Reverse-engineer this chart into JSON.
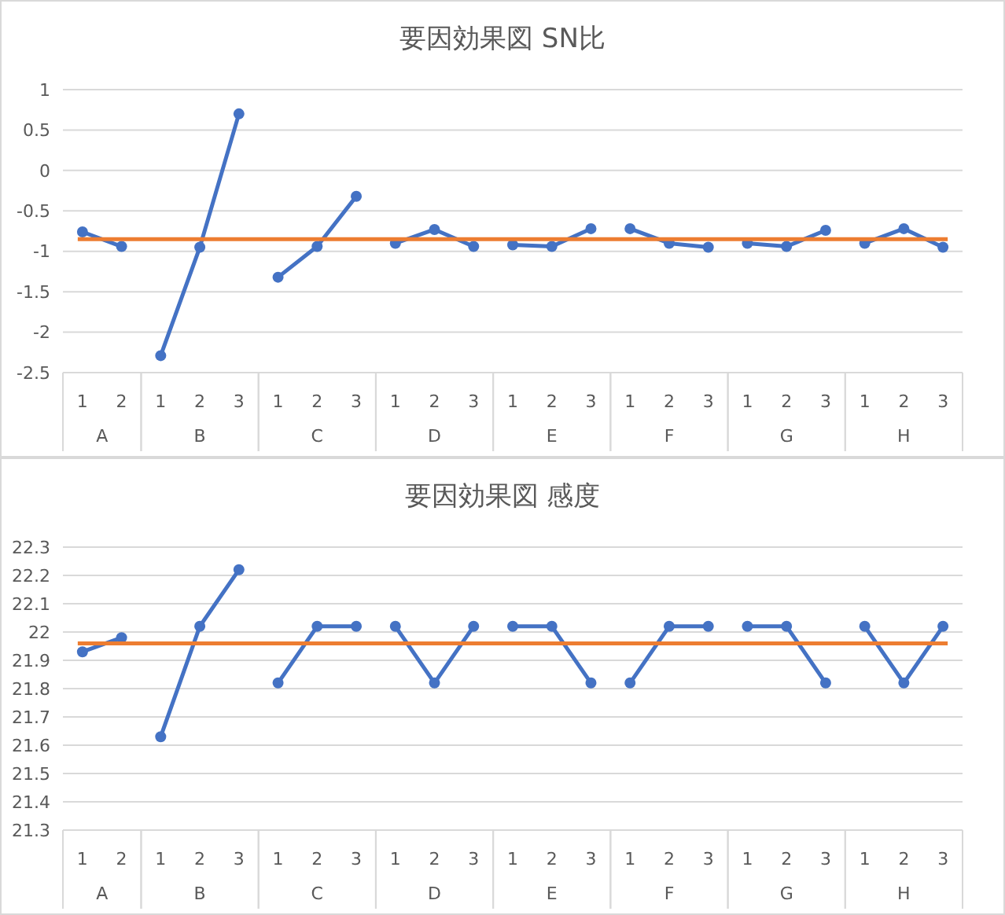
{
  "chart_data": [
    {
      "type": "line",
      "title": "要因効果図 SN比",
      "categories": [
        "1",
        "2",
        "1",
        "2",
        "3",
        "1",
        "2",
        "3",
        "1",
        "2",
        "3",
        "1",
        "2",
        "3",
        "1",
        "2",
        "3",
        "1",
        "2",
        "3",
        "1",
        "2",
        "3"
      ],
      "series": [
        {
          "color": "#4472c4",
          "values": [
            -0.76,
            -0.94,
            null,
            null,
            null,
            null,
            null,
            null,
            null,
            null,
            null,
            null,
            null,
            null,
            null,
            null,
            null,
            null,
            null,
            null,
            null,
            null,
            null
          ]
        },
        {
          "color": "#4472c4",
          "values": [
            null,
            null,
            -2.29,
            -0.95,
            0.7,
            null,
            null,
            null,
            null,
            null,
            null,
            null,
            null,
            null,
            null,
            null,
            null,
            null,
            null,
            null,
            null,
            null,
            null
          ]
        },
        {
          "color": "#4472c4",
          "values": [
            null,
            null,
            null,
            null,
            null,
            -1.32,
            -0.94,
            -0.32,
            null,
            null,
            null,
            null,
            null,
            null,
            null,
            null,
            null,
            null,
            null,
            null,
            null,
            null,
            null
          ]
        },
        {
          "color": "#4472c4",
          "values": [
            null,
            null,
            null,
            null,
            null,
            null,
            null,
            null,
            -0.9,
            -0.73,
            -0.94,
            null,
            null,
            null,
            null,
            null,
            null,
            null,
            null,
            null,
            null,
            null,
            null
          ]
        },
        {
          "color": "#4472c4",
          "values": [
            null,
            null,
            null,
            null,
            null,
            null,
            null,
            null,
            null,
            null,
            null,
            -0.92,
            -0.94,
            -0.72,
            null,
            null,
            null,
            null,
            null,
            null,
            null,
            null,
            null
          ]
        },
        {
          "color": "#4472c4",
          "values": [
            null,
            null,
            null,
            null,
            null,
            null,
            null,
            null,
            null,
            null,
            null,
            null,
            null,
            null,
            -0.72,
            -0.9,
            -0.95,
            null,
            null,
            null,
            null,
            null,
            null
          ]
        },
        {
          "color": "#4472c4",
          "values": [
            null,
            null,
            null,
            null,
            null,
            null,
            null,
            null,
            null,
            null,
            null,
            null,
            null,
            null,
            null,
            null,
            null,
            -0.9,
            -0.94,
            -0.74,
            null,
            null,
            null
          ]
        },
        {
          "color": "#4472c4",
          "values": [
            null,
            null,
            null,
            null,
            null,
            null,
            null,
            null,
            null,
            null,
            null,
            null,
            null,
            null,
            null,
            null,
            null,
            null,
            null,
            null,
            -0.9,
            -0.72,
            -0.95
          ]
        }
      ],
      "annotations": [
        "A",
        "B",
        "C",
        "D",
        "E",
        "F",
        "G",
        "H"
      ],
      "ref_lines": [
        {
          "axis": "y",
          "value": -0.85,
          "color": "#ed7d31"
        }
      ],
      "ylim": [
        -2.5,
        1
      ],
      "yticks": [
        -2.5,
        -2,
        -1.5,
        -1,
        -0.5,
        0,
        0.5,
        1
      ],
      "grid": "y",
      "marker": "circle"
    },
    {
      "type": "line",
      "title": "要因効果図 感度",
      "categories": [
        "1",
        "2",
        "1",
        "2",
        "3",
        "1",
        "2",
        "3",
        "1",
        "2",
        "3",
        "1",
        "2",
        "3",
        "1",
        "2",
        "3",
        "1",
        "2",
        "3",
        "1",
        "2",
        "3"
      ],
      "series": [
        {
          "color": "#4472c4",
          "values": [
            21.93,
            21.98,
            null,
            null,
            null,
            null,
            null,
            null,
            null,
            null,
            null,
            null,
            null,
            null,
            null,
            null,
            null,
            null,
            null,
            null,
            null,
            null,
            null
          ]
        },
        {
          "color": "#4472c4",
          "values": [
            null,
            null,
            21.63,
            22.02,
            22.22,
            null,
            null,
            null,
            null,
            null,
            null,
            null,
            null,
            null,
            null,
            null,
            null,
            null,
            null,
            null,
            null,
            null,
            null
          ]
        },
        {
          "color": "#4472c4",
          "values": [
            null,
            null,
            null,
            null,
            null,
            21.82,
            22.02,
            22.02,
            null,
            null,
            null,
            null,
            null,
            null,
            null,
            null,
            null,
            null,
            null,
            null,
            null,
            null,
            null
          ]
        },
        {
          "color": "#4472c4",
          "values": [
            null,
            null,
            null,
            null,
            null,
            null,
            null,
            null,
            22.02,
            21.82,
            22.02,
            null,
            null,
            null,
            null,
            null,
            null,
            null,
            null,
            null,
            null,
            null,
            null
          ]
        },
        {
          "color": "#4472c4",
          "values": [
            null,
            null,
            null,
            null,
            null,
            null,
            null,
            null,
            null,
            null,
            null,
            22.02,
            22.02,
            21.82,
            null,
            null,
            null,
            null,
            null,
            null,
            null,
            null,
            null
          ]
        },
        {
          "color": "#4472c4",
          "values": [
            null,
            null,
            null,
            null,
            null,
            null,
            null,
            null,
            null,
            null,
            null,
            null,
            null,
            null,
            21.82,
            22.02,
            22.02,
            null,
            null,
            null,
            null,
            null,
            null
          ]
        },
        {
          "color": "#4472c4",
          "values": [
            null,
            null,
            null,
            null,
            null,
            null,
            null,
            null,
            null,
            null,
            null,
            null,
            null,
            null,
            null,
            null,
            null,
            22.02,
            22.02,
            21.82,
            null,
            null,
            null
          ]
        },
        {
          "color": "#4472c4",
          "values": [
            null,
            null,
            null,
            null,
            null,
            null,
            null,
            null,
            null,
            null,
            null,
            null,
            null,
            null,
            null,
            null,
            null,
            null,
            null,
            null,
            22.02,
            21.82,
            22.02
          ]
        }
      ],
      "annotations": [
        "A",
        "B",
        "C",
        "D",
        "E",
        "F",
        "G",
        "H"
      ],
      "ref_lines": [
        {
          "axis": "y",
          "value": 21.96,
          "color": "#ed7d31"
        }
      ],
      "ylim": [
        21.3,
        22.3
      ],
      "yticks": [
        21.3,
        21.4,
        21.5,
        21.6,
        21.7,
        21.8,
        21.9,
        22,
        22.1,
        22.2,
        22.3
      ],
      "grid": "y",
      "marker": "circle"
    }
  ]
}
